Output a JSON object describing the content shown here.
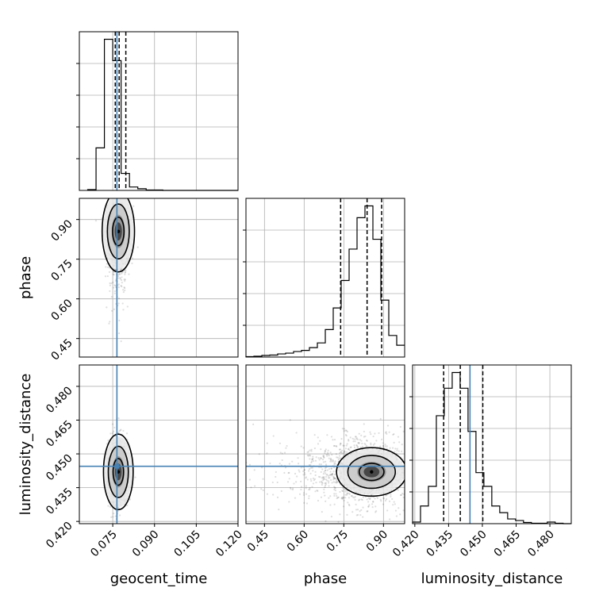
{
  "chart_data": {
    "type": "corner",
    "parameters": [
      "geocent_time",
      "phase",
      "luminosity_distance"
    ],
    "axis_labels": {
      "geocent_time": "geocent_time",
      "phase": "phase",
      "luminosity_distance": "luminosity_distance"
    },
    "ranges": {
      "geocent_time": [
        0.063,
        0.12
      ],
      "phase": [
        0.38,
        0.98
      ],
      "luminosity_distance": [
        0.419,
        0.4895
      ]
    },
    "ticks": {
      "geocent_time": [
        "0.075",
        "0.090",
        "0.105",
        "0.120"
      ],
      "phase": [
        "0.45",
        "0.60",
        "0.75",
        "0.90"
      ],
      "luminosity_distance": [
        "0.420",
        "0.435",
        "0.450",
        "0.465",
        "0.480"
      ]
    },
    "truths": {
      "geocent_time": 0.0765,
      "phase": null,
      "luminosity_distance": 0.4445
    },
    "quantiles": {
      "geocent_time": [
        0.0759,
        0.0773,
        0.0797
      ],
      "phase": [
        0.738,
        0.838,
        0.893
      ],
      "luminosity_distance": [
        0.4328,
        0.4402,
        0.4502
      ]
    },
    "marginal_histograms": {
      "geocent_time": {
        "bins_start": 0.066,
        "bin_width": 0.003,
        "counts": [
          2,
          100,
          355,
          305,
          40,
          8,
          4,
          1,
          1,
          0,
          0,
          0,
          0,
          0,
          0,
          0,
          0,
          0
        ]
      },
      "phase": {
        "bins_start": 0.38,
        "bin_width": 0.03,
        "counts": [
          1,
          2,
          4,
          5,
          8,
          10,
          14,
          17,
          24,
          36,
          70,
          125,
          195,
          275,
          355,
          385,
          300,
          145,
          55,
          30
        ]
      },
      "luminosity_distance": {
        "bins_start": 0.419,
        "bin_width": 0.00352,
        "counts": [
          4,
          45,
          95,
          275,
          345,
          385,
          345,
          235,
          130,
          95,
          45,
          28,
          12,
          8,
          3,
          1,
          1,
          4,
          1,
          0
        ]
      }
    },
    "density_peaks": {
      "geocent_time_vs_phase": {
        "x": 0.077,
        "y": 0.855
      },
      "geocent_time_vs_luminosity_distance": {
        "x": 0.077,
        "y": 0.442
      },
      "phase_vs_luminosity_distance": {
        "x": 0.855,
        "y": 0.442
      }
    },
    "grid": true
  }
}
